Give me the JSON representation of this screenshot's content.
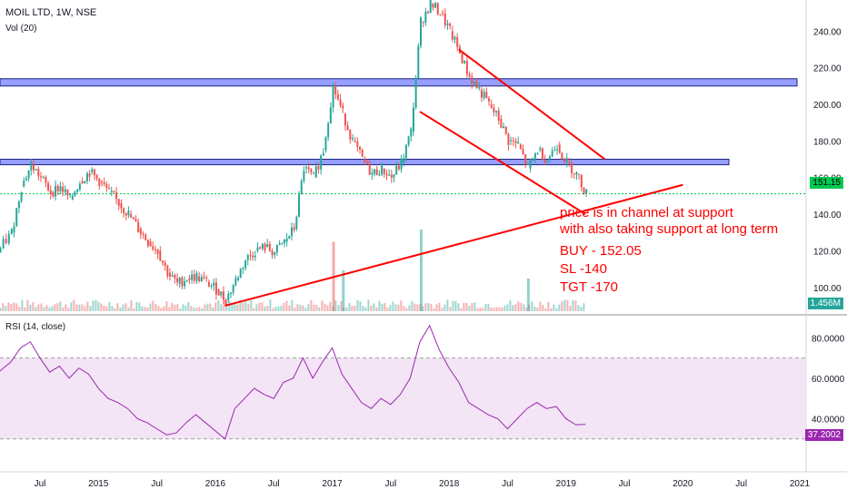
{
  "header": {
    "symbol_line": "MOIL LTD, 1W, NSE",
    "volume_label": "Vol (20)",
    "rsi_label": "RSI (14, close)"
  },
  "annotation": {
    "line1": "price is in channel at support",
    "line2": "with also taking support at long term",
    "line3": "BUY - 152.05",
    "line4": "SL -140",
    "line5": "TGT -170"
  },
  "badges": {
    "price": "151.15",
    "volume": "1.456M",
    "rsi": "37.2002"
  },
  "colors": {
    "up": "#26a69a",
    "down": "#ef5350",
    "trendline": "#ff0000",
    "zone_fill": "#3f51ff",
    "rsi_line": "#9c27b0",
    "rsi_band": "#f3e5f5",
    "price_line": "#00c853"
  },
  "chart_data": [
    {
      "type": "candlestick",
      "title": "MOIL LTD, 1W, NSE",
      "y_axis_ticks": [
        "100.00",
        "120.00",
        "140.00",
        "160.00",
        "180.00",
        "200.00",
        "220.00",
        "240.00"
      ],
      "ylim": [
        86,
        257
      ],
      "x_axis_ticks": [
        "Jul",
        "2015",
        "Jul",
        "2016",
        "Jul",
        "2017",
        "Jul",
        "2018",
        "Jul",
        "2019",
        "Jul",
        "2020",
        "Jul",
        "2021"
      ],
      "x_tick_dates": [
        "2014-07",
        "2015-01",
        "2015-07",
        "2016-01",
        "2016-07",
        "2017-01",
        "2017-07",
        "2018-01",
        "2018-07",
        "2019-01",
        "2019-07",
        "2020-01",
        "2020-07",
        "2021-01"
      ],
      "last_price": 151.15,
      "close_series": [
        [
          "2014-02",
          115
        ],
        [
          "2014-04",
          130
        ],
        [
          "2014-05",
          155
        ],
        [
          "2014-06",
          167
        ],
        [
          "2014-07",
          160
        ],
        [
          "2014-08",
          152
        ],
        [
          "2014-09",
          155
        ],
        [
          "2014-10",
          148
        ],
        [
          "2014-11",
          158
        ],
        [
          "2014-12",
          163
        ],
        [
          "2015-01",
          158
        ],
        [
          "2015-02",
          152
        ],
        [
          "2015-03",
          146
        ],
        [
          "2015-04",
          140
        ],
        [
          "2015-05",
          132
        ],
        [
          "2015-06",
          125
        ],
        [
          "2015-07",
          120
        ],
        [
          "2015-08",
          108
        ],
        [
          "2015-09",
          102
        ],
        [
          "2015-10",
          105
        ],
        [
          "2015-11",
          106
        ],
        [
          "2015-12",
          103
        ],
        [
          "2016-01",
          99
        ],
        [
          "2016-02",
          93
        ],
        [
          "2016-03",
          104
        ],
        [
          "2016-04",
          115
        ],
        [
          "2016-05",
          120
        ],
        [
          "2016-06",
          122
        ],
        [
          "2016-07",
          119
        ],
        [
          "2016-08",
          125
        ],
        [
          "2016-09",
          132
        ],
        [
          "2016-10",
          165
        ],
        [
          "2016-11",
          160
        ],
        [
          "2016-12",
          175
        ],
        [
          "2017-01",
          210
        ],
        [
          "2017-02",
          195
        ],
        [
          "2017-03",
          180
        ],
        [
          "2017-04",
          170
        ],
        [
          "2017-05",
          162
        ],
        [
          "2017-06",
          165
        ],
        [
          "2017-07",
          160
        ],
        [
          "2017-08",
          168
        ],
        [
          "2017-09",
          185
        ],
        [
          "2017-10",
          245
        ],
        [
          "2017-11",
          255
        ],
        [
          "2017-12",
          250
        ],
        [
          "2018-01",
          240
        ],
        [
          "2018-02",
          228
        ],
        [
          "2018-03",
          215
        ],
        [
          "2018-04",
          208
        ],
        [
          "2018-05",
          200
        ],
        [
          "2018-06",
          192
        ],
        [
          "2018-07",
          180
        ],
        [
          "2018-08",
          178
        ],
        [
          "2018-09",
          165
        ],
        [
          "2018-10",
          175
        ],
        [
          "2018-11",
          170
        ],
        [
          "2018-12",
          178
        ],
        [
          "2019-01",
          168
        ],
        [
          "2019-02",
          162
        ],
        [
          "2019-03",
          151.15
        ]
      ],
      "resistance_zones": [
        {
          "low": 210,
          "high": 214
        },
        {
          "low": 167,
          "high": 170
        }
      ],
      "trendlines": [
        {
          "from": [
            "2016-02",
            90
          ],
          "to": [
            "2020-01",
            156
          ]
        },
        {
          "from": [
            "2018-02",
            230
          ],
          "to": [
            "2019-05",
            170
          ]
        },
        {
          "from": [
            "2017-10",
            196
          ],
          "to": [
            "2019-03",
            140
          ]
        }
      ]
    },
    {
      "type": "bar",
      "title": "Vol (20)",
      "last_value": "1.456M",
      "spikes": [
        [
          "2017-01",
          0.85
        ],
        [
          "2017-10",
          1.0
        ],
        [
          "2017-02",
          0.5
        ],
        [
          "2018-09",
          0.4
        ]
      ]
    },
    {
      "type": "line",
      "title": "RSI (14, close)",
      "y_axis_ticks": [
        "40.0000",
        "60.0000",
        "80.0000"
      ],
      "ylim": [
        16,
        90
      ],
      "band": [
        30,
        70
      ],
      "last_value": 37.2002,
      "series": [
        [
          "2014-02",
          60
        ],
        [
          "2014-04",
          68
        ],
        [
          "2014-05",
          75
        ],
        [
          "2014-06",
          78
        ],
        [
          "2014-07",
          70
        ],
        [
          "2014-08",
          63
        ],
        [
          "2014-09",
          66
        ],
        [
          "2014-10",
          60
        ],
        [
          "2014-11",
          65
        ],
        [
          "2014-12",
          62
        ],
        [
          "2015-01",
          55
        ],
        [
          "2015-02",
          50
        ],
        [
          "2015-03",
          48
        ],
        [
          "2015-04",
          45
        ],
        [
          "2015-05",
          40
        ],
        [
          "2015-06",
          38
        ],
        [
          "2015-07",
          35
        ],
        [
          "2015-08",
          32
        ],
        [
          "2015-09",
          33
        ],
        [
          "2015-10",
          38
        ],
        [
          "2015-11",
          42
        ],
        [
          "2015-12",
          38
        ],
        [
          "2016-01",
          34
        ],
        [
          "2016-02",
          30
        ],
        [
          "2016-03",
          45
        ],
        [
          "2016-04",
          50
        ],
        [
          "2016-05",
          55
        ],
        [
          "2016-06",
          52
        ],
        [
          "2016-07",
          50
        ],
        [
          "2016-08",
          58
        ],
        [
          "2016-09",
          60
        ],
        [
          "2016-10",
          70
        ],
        [
          "2016-11",
          60
        ],
        [
          "2016-12",
          68
        ],
        [
          "2017-01",
          75
        ],
        [
          "2017-02",
          62
        ],
        [
          "2017-03",
          55
        ],
        [
          "2017-04",
          48
        ],
        [
          "2017-05",
          45
        ],
        [
          "2017-06",
          50
        ],
        [
          "2017-07",
          47
        ],
        [
          "2017-08",
          52
        ],
        [
          "2017-09",
          60
        ],
        [
          "2017-10",
          78
        ],
        [
          "2017-11",
          86
        ],
        [
          "2017-12",
          74
        ],
        [
          "2018-01",
          65
        ],
        [
          "2018-02",
          58
        ],
        [
          "2018-03",
          48
        ],
        [
          "2018-04",
          45
        ],
        [
          "2018-05",
          42
        ],
        [
          "2018-06",
          40
        ],
        [
          "2018-07",
          35
        ],
        [
          "2018-08",
          40
        ],
        [
          "2018-09",
          45
        ],
        [
          "2018-10",
          48
        ],
        [
          "2018-11",
          45
        ],
        [
          "2018-12",
          46
        ],
        [
          "2019-01",
          40
        ],
        [
          "2019-02",
          37
        ],
        [
          "2019-03",
          37.2
        ]
      ]
    }
  ]
}
